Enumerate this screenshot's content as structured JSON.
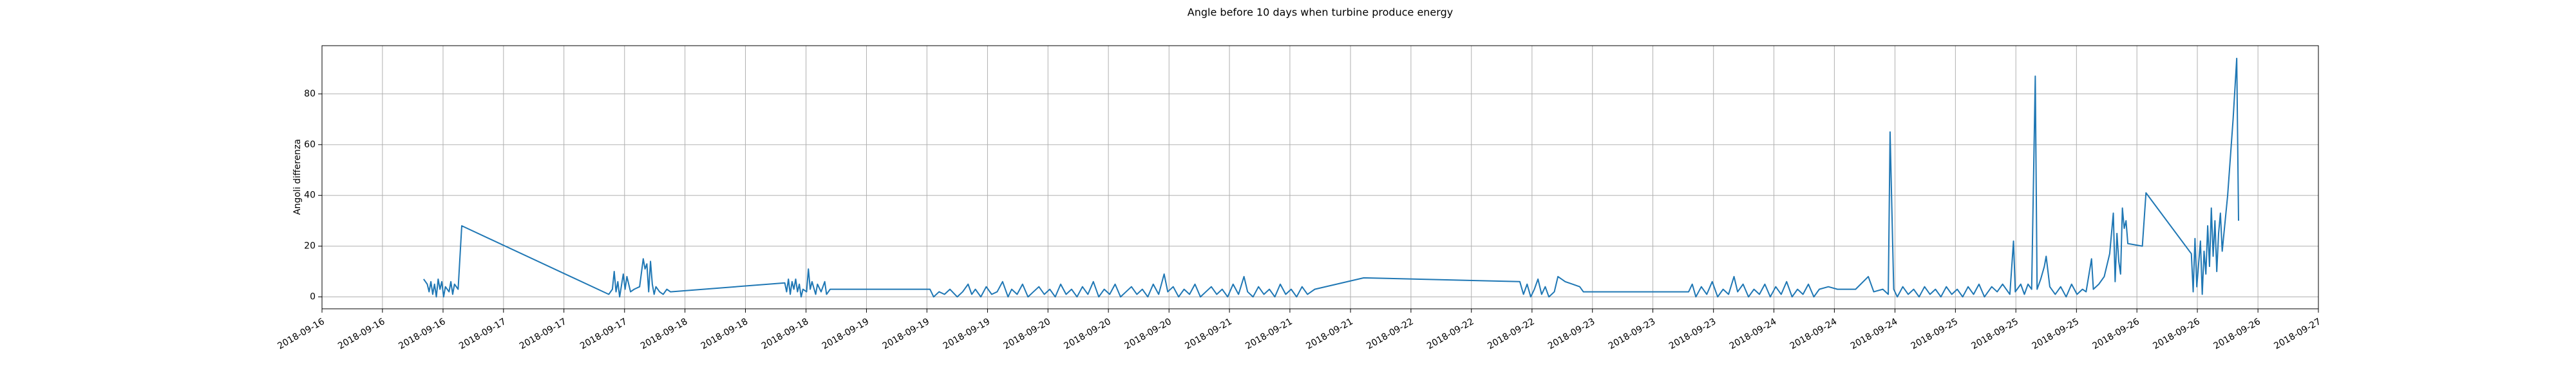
{
  "chart_data": {
    "type": "line",
    "title": "Angle before 10 days when turbine produce energy",
    "y_label": "Angoli differenza",
    "color": "#1f77b4",
    "grid": true,
    "xlim": [
      16,
      27
    ],
    "ylim": [
      -4.7,
      99
    ],
    "yticks": [
      0,
      20,
      40,
      60,
      80
    ],
    "xticks": [
      {
        "value": 16,
        "label": "2018-09-16"
      },
      {
        "value": 16.333,
        "label": "2018-09-16"
      },
      {
        "value": 16.667,
        "label": "2018-09-16"
      },
      {
        "value": 17,
        "label": "2018-09-17"
      },
      {
        "value": 17.333,
        "label": "2018-09-17"
      },
      {
        "value": 17.667,
        "label": "2018-09-17"
      },
      {
        "value": 18,
        "label": "2018-09-18"
      },
      {
        "value": 18.333,
        "label": "2018-09-18"
      },
      {
        "value": 18.667,
        "label": "2018-09-18"
      },
      {
        "value": 19,
        "label": "2018-09-19"
      },
      {
        "value": 19.333,
        "label": "2018-09-19"
      },
      {
        "value": 19.667,
        "label": "2018-09-19"
      },
      {
        "value": 20,
        "label": "2018-09-20"
      },
      {
        "value": 20.333,
        "label": "2018-09-20"
      },
      {
        "value": 20.667,
        "label": "2018-09-20"
      },
      {
        "value": 21,
        "label": "2018-09-21"
      },
      {
        "value": 21.333,
        "label": "2018-09-21"
      },
      {
        "value": 21.667,
        "label": "2018-09-21"
      },
      {
        "value": 22,
        "label": "2018-09-22"
      },
      {
        "value": 22.333,
        "label": "2018-09-22"
      },
      {
        "value": 22.667,
        "label": "2018-09-22"
      },
      {
        "value": 23,
        "label": "2018-09-23"
      },
      {
        "value": 23.333,
        "label": "2018-09-23"
      },
      {
        "value": 23.667,
        "label": "2018-09-23"
      },
      {
        "value": 24,
        "label": "2018-09-24"
      },
      {
        "value": 24.333,
        "label": "2018-09-24"
      },
      {
        "value": 24.667,
        "label": "2018-09-24"
      },
      {
        "value": 25,
        "label": "2018-09-25"
      },
      {
        "value": 25.333,
        "label": "2018-09-25"
      },
      {
        "value": 25.667,
        "label": "2018-09-25"
      },
      {
        "value": 26,
        "label": "2018-09-26"
      },
      {
        "value": 26.333,
        "label": "2018-09-26"
      },
      {
        "value": 26.667,
        "label": "2018-09-26"
      },
      {
        "value": 27,
        "label": "2018-09-27"
      }
    ],
    "x": [
      16.56,
      16.58,
      16.59,
      16.6,
      16.61,
      16.62,
      16.63,
      16.64,
      16.65,
      16.66,
      16.67,
      16.68,
      16.7,
      16.71,
      16.72,
      16.73,
      16.75,
      16.77,
      17.58,
      17.6,
      17.61,
      17.62,
      17.63,
      17.64,
      17.66,
      17.67,
      17.68,
      17.7,
      17.72,
      17.75,
      17.77,
      17.78,
      17.79,
      17.8,
      17.81,
      17.82,
      17.83,
      17.84,
      17.86,
      17.88,
      17.9,
      17.92,
      18.55,
      18.56,
      18.57,
      18.58,
      18.59,
      18.6,
      18.61,
      18.62,
      18.63,
      18.64,
      18.65,
      18.67,
      18.68,
      18.69,
      18.7,
      18.72,
      18.73,
      18.75,
      18.77,
      18.78,
      18.8,
      19.35,
      19.37,
      19.4,
      19.43,
      19.46,
      19.5,
      19.53,
      19.56,
      19.58,
      19.6,
      19.63,
      19.66,
      19.69,
      19.72,
      19.75,
      19.78,
      19.8,
      19.83,
      19.86,
      19.89,
      19.92,
      19.95,
      19.98,
      20.01,
      20.04,
      20.07,
      20.1,
      20.13,
      20.16,
      20.19,
      20.22,
      20.25,
      20.28,
      20.31,
      20.34,
      20.37,
      20.4,
      20.43,
      20.46,
      20.49,
      20.52,
      20.55,
      20.58,
      20.61,
      20.64,
      20.66,
      20.69,
      20.72,
      20.75,
      20.78,
      20.81,
      20.84,
      20.87,
      20.9,
      20.93,
      20.96,
      20.99,
      21.02,
      21.05,
      21.08,
      21.1,
      21.13,
      21.16,
      21.19,
      21.22,
      21.25,
      21.28,
      21.31,
      21.34,
      21.37,
      21.4,
      21.43,
      21.47,
      21.74,
      22.6,
      22.62,
      22.64,
      22.66,
      22.68,
      22.7,
      22.72,
      22.74,
      22.76,
      22.79,
      22.81,
      22.85,
      22.89,
      22.93,
      22.95,
      23.53,
      23.55,
      23.57,
      23.6,
      23.63,
      23.66,
      23.69,
      23.72,
      23.75,
      23.78,
      23.8,
      23.83,
      23.86,
      23.89,
      23.92,
      23.95,
      23.98,
      24.01,
      24.04,
      24.07,
      24.1,
      24.13,
      24.16,
      24.19,
      24.22,
      24.25,
      24.3,
      24.35,
      24.45,
      24.52,
      24.55,
      24.6,
      24.63,
      24.64,
      24.66,
      24.68,
      24.71,
      24.74,
      24.77,
      24.8,
      24.83,
      24.86,
      24.89,
      24.92,
      24.95,
      24.98,
      25.01,
      25.04,
      25.07,
      25.1,
      25.13,
      25.16,
      25.2,
      25.23,
      25.26,
      25.3,
      25.32,
      25.33,
      25.36,
      25.38,
      25.4,
      25.42,
      25.44,
      25.45,
      25.47,
      25.49,
      25.5,
      25.52,
      25.55,
      25.58,
      25.61,
      25.64,
      25.67,
      25.7,
      25.72,
      25.75,
      25.76,
      25.79,
      25.82,
      25.85,
      25.87,
      25.88,
      25.89,
      25.9,
      25.91,
      25.92,
      25.93,
      25.94,
      25.95,
      26.03,
      26.05,
      26.3,
      26.31,
      26.32,
      26.33,
      26.35,
      26.36,
      26.37,
      26.38,
      26.39,
      26.4,
      26.41,
      26.42,
      26.43,
      26.44,
      26.45,
      26.46,
      26.47,
      26.5,
      26.53,
      26.55,
      26.56
    ],
    "values": [
      7,
      5,
      2,
      6,
      1,
      5,
      0,
      7,
      3,
      6,
      0,
      4,
      2,
      6,
      1,
      5,
      3,
      28,
      1,
      3,
      10,
      2,
      6,
      0,
      9,
      3,
      8,
      2,
      3,
      4,
      15,
      11,
      13,
      2,
      14,
      5,
      1,
      4,
      2,
      1,
      3,
      2,
      5.5,
      2,
      7,
      1,
      6,
      3,
      7,
      2,
      5,
      0,
      3,
      2,
      11,
      3,
      6,
      1,
      5,
      2,
      6,
      1,
      3,
      3,
      0,
      2,
      1,
      3,
      0,
      2,
      5,
      1,
      3,
      0,
      4,
      1,
      2,
      6,
      0,
      3,
      1,
      5,
      0,
      2,
      4,
      1,
      3,
      0,
      5,
      1,
      3,
      0,
      4,
      1,
      6,
      0,
      3,
      1,
      5,
      0,
      2,
      4,
      1,
      3,
      0,
      5,
      1,
      9,
      2,
      4,
      0,
      3,
      1,
      5,
      0,
      2,
      4,
      1,
      3,
      0,
      5,
      1,
      8,
      2,
      0,
      4,
      1,
      3,
      0,
      5,
      1,
      3,
      0,
      4,
      1,
      3,
      7.5,
      6,
      1,
      5,
      0,
      3,
      7,
      1,
      4,
      0,
      2,
      8,
      6,
      5,
      4,
      2,
      2,
      5,
      0,
      4,
      1,
      6,
      0,
      3,
      1,
      8,
      2,
      5,
      0,
      3,
      1,
      5,
      0,
      4,
      1,
      6,
      0,
      3,
      1,
      5,
      0,
      3,
      4,
      3,
      3,
      8,
      2,
      3,
      1,
      65,
      3,
      0,
      4,
      1,
      3,
      0,
      4,
      1,
      3,
      0,
      4,
      1,
      3,
      0,
      4,
      1,
      5,
      0,
      4,
      2,
      5,
      1,
      22,
      2,
      5,
      1,
      5,
      3,
      87,
      3,
      7,
      12,
      16,
      4,
      1,
      4,
      0,
      5,
      1,
      3,
      2,
      15,
      3,
      5,
      8,
      17,
      33,
      6,
      25,
      14,
      9,
      35,
      27,
      30,
      21,
      20,
      41,
      17,
      2,
      23,
      4,
      22,
      1,
      18,
      9,
      28,
      12,
      35,
      16,
      30,
      10,
      25,
      33,
      18,
      40,
      70,
      94,
      30
    ]
  }
}
